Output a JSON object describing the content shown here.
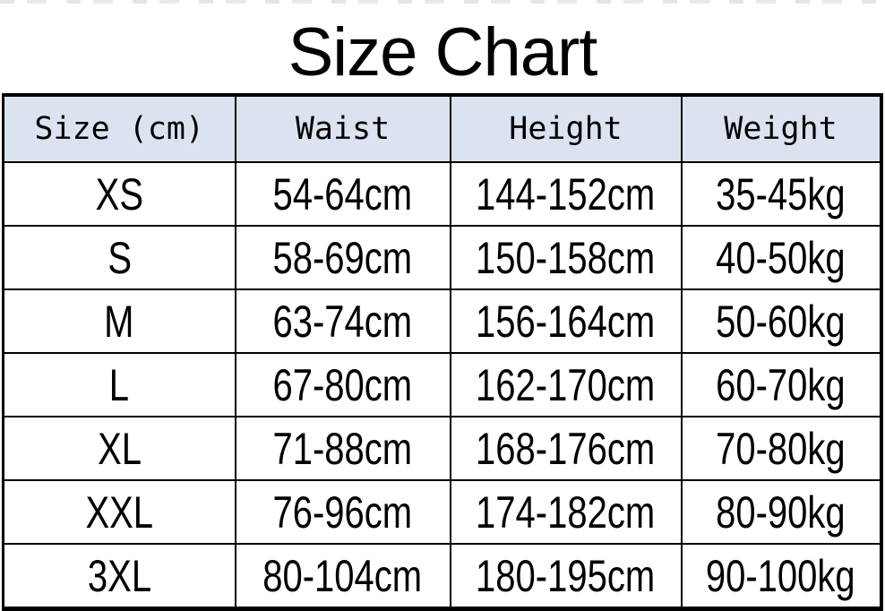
{
  "title": "Size Chart",
  "colors": {
    "background": "#ffffff",
    "header_bg": "#dce3f0",
    "border": "#000000",
    "text": "#000000"
  },
  "table": {
    "headers": [
      "Size (cm)",
      "Waist",
      "Height",
      "Weight"
    ],
    "rows": [
      [
        "XS",
        "54-64cm",
        "144-152cm",
        "35-45kg"
      ],
      [
        "S",
        "58-69cm",
        "150-158cm",
        "40-50kg"
      ],
      [
        "M",
        "63-74cm",
        "156-164cm",
        "50-60kg"
      ],
      [
        "L",
        "67-80cm",
        "162-170cm",
        "60-70kg"
      ],
      [
        "XL",
        "71-88cm",
        "168-176cm",
        "70-80kg"
      ],
      [
        "XXL",
        "76-96cm",
        "174-182cm",
        "80-90kg"
      ],
      [
        "3XL",
        "80-104cm",
        "180-195cm",
        "90-100kg"
      ]
    ]
  },
  "chart_data": {
    "type": "table",
    "title": "Size Chart",
    "columns": [
      "Size (cm)",
      "Waist",
      "Height",
      "Weight"
    ],
    "rows": [
      [
        "XS",
        "54-64cm",
        "144-152cm",
        "35-45kg"
      ],
      [
        "S",
        "58-69cm",
        "150-158cm",
        "40-50kg"
      ],
      [
        "M",
        "63-74cm",
        "156-164cm",
        "50-60kg"
      ],
      [
        "L",
        "67-80cm",
        "162-170cm",
        "60-70kg"
      ],
      [
        "XL",
        "71-88cm",
        "168-176cm",
        "70-80kg"
      ],
      [
        "XXL",
        "76-96cm",
        "174-182cm",
        "80-90kg"
      ],
      [
        "3XL",
        "80-104cm",
        "180-195cm",
        "90-100kg"
      ]
    ]
  }
}
